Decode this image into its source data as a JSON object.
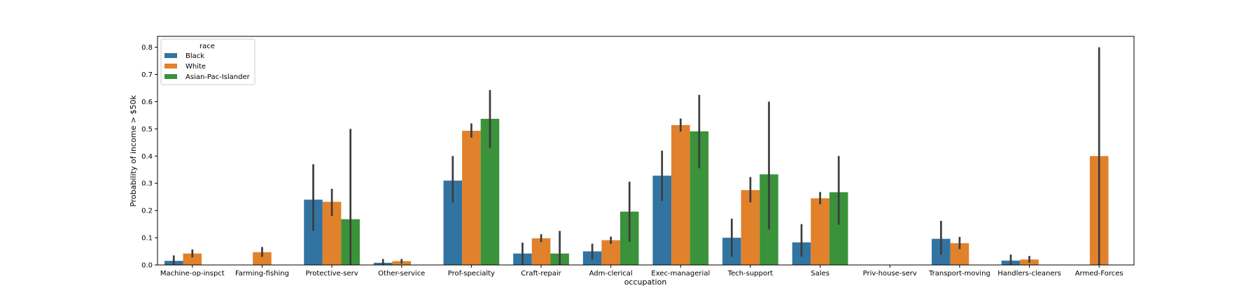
{
  "chart_data": {
    "type": "bar",
    "title": "",
    "xlabel": "occupation",
    "ylabel": "Probability of income > $50k",
    "ylim": [
      0,
      0.84
    ],
    "yticks": [
      0.0,
      0.1,
      0.2,
      0.3,
      0.4,
      0.5,
      0.6,
      0.7,
      0.8
    ],
    "ytick_labels": [
      "0.0",
      "0.1",
      "0.2",
      "0.3",
      "0.4",
      "0.5",
      "0.6",
      "0.7",
      "0.8"
    ],
    "grid": false,
    "legend": {
      "title": "race",
      "placement": "top-left"
    },
    "categories": [
      "Machine-op-inspct",
      "Farming-fishing",
      "Protective-serv",
      "Other-service",
      "Prof-specialty",
      "Craft-repair",
      "Adm-clerical",
      "Exec-managerial",
      "Tech-support",
      "Sales",
      "Priv-house-serv",
      "Transport-moving",
      "Handlers-cleaners",
      "Armed-Forces"
    ],
    "series": [
      {
        "name": "Black",
        "color": "#3274a1",
        "values": [
          0.015,
          null,
          0.24,
          0.008,
          0.31,
          0.042,
          0.05,
          0.328,
          0.1,
          0.083,
          null,
          0.096,
          0.016,
          null
        ],
        "ci": [
          [
            0.0,
            0.035
          ],
          null,
          [
            0.125,
            0.37
          ],
          [
            0.0,
            0.022
          ],
          [
            0.23,
            0.4
          ],
          [
            0.0,
            0.082
          ],
          [
            0.02,
            0.078
          ],
          [
            0.235,
            0.42
          ],
          [
            0.03,
            0.17
          ],
          [
            0.03,
            0.15
          ],
          null,
          [
            0.038,
            0.162
          ],
          [
            0.0,
            0.038
          ],
          null
        ]
      },
      {
        "name": "White",
        "color": "#e1812c",
        "values": [
          0.042,
          0.047,
          0.232,
          0.014,
          0.493,
          0.098,
          0.091,
          0.514,
          0.275,
          0.245,
          0.0,
          0.08,
          0.02,
          0.4
        ],
        "ci": [
          [
            0.028,
            0.057
          ],
          [
            0.03,
            0.066
          ],
          [
            0.18,
            0.28
          ],
          [
            0.005,
            0.022
          ],
          [
            0.468,
            0.52
          ],
          [
            0.084,
            0.113
          ],
          [
            0.077,
            0.104
          ],
          [
            0.49,
            0.538
          ],
          [
            0.23,
            0.323
          ],
          [
            0.223,
            0.268
          ],
          null,
          [
            0.058,
            0.103
          ],
          [
            0.008,
            0.033
          ],
          [
            0.0,
            0.8
          ]
        ]
      },
      {
        "name": "Asian-Pac-Islander",
        "color": "#3a923a",
        "values": [
          null,
          null,
          0.168,
          null,
          0.537,
          0.042,
          0.196,
          0.491,
          0.333,
          0.267,
          null,
          null,
          null,
          null
        ],
        "ci": [
          null,
          null,
          [
            0.0,
            0.5
          ],
          null,
          [
            0.43,
            0.643
          ],
          [
            0.0,
            0.125
          ],
          [
            0.085,
            0.306
          ],
          [
            0.355,
            0.625
          ],
          [
            0.13,
            0.6
          ],
          [
            0.148,
            0.4
          ],
          null,
          null,
          null,
          null
        ]
      }
    ]
  }
}
